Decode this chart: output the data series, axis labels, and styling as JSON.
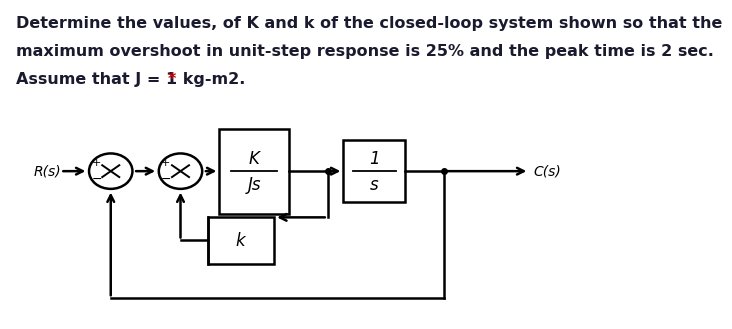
{
  "title_line1": "Determine the values, of K and k of the closed-loop system shown so that the",
  "title_line2": "maximum overshoot in unit-step response is 25% and the peak time is 2 sec.",
  "title_line3_main": "Assume that J = 1 kg-m2. ",
  "title_line3_star": "*",
  "title_color": "#1a1a2e",
  "star_color": "#cc0000",
  "bg_color": "#ffffff",
  "text_fontsize": 11.5,
  "diagram": {
    "R_label": "R(s)",
    "C_label": "C(s)",
    "box1_num": "K",
    "box1_den": "Js",
    "box2_num": "1",
    "box2_den": "s",
    "k_label": "k"
  }
}
